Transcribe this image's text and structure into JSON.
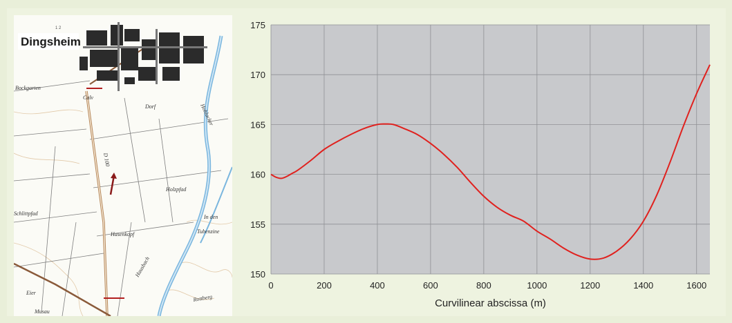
{
  "map": {
    "town_label": "Dingsheim",
    "grid_ref": "1 2",
    "labels": [
      {
        "id": "bockgarten",
        "text": "Bockgarten"
      },
      {
        "id": "cale",
        "text": "Calv"
      },
      {
        "id": "hohlacker",
        "text": "Hohlacker"
      },
      {
        "id": "d100",
        "text": "D 100"
      },
      {
        "id": "holzpfad",
        "text": "Holzpfad"
      },
      {
        "id": "schlittpfad",
        "text": "Schlittpfad"
      },
      {
        "id": "hasenkopf",
        "text": "Hasenkopf"
      },
      {
        "id": "indem",
        "text": "In den"
      },
      {
        "id": "tubenzine",
        "text": "Tubenzine"
      },
      {
        "id": "eier",
        "text": "Eier"
      },
      {
        "id": "musau",
        "text": "Musau"
      },
      {
        "id": "rottberg",
        "text": "Rottberg"
      },
      {
        "id": "dorf",
        "text": "Dorf"
      },
      {
        "id": "bach",
        "text": "Hausbach"
      }
    ]
  },
  "chart_data": {
    "type": "line",
    "title": "",
    "xlabel": "Curvilinear abscissa (m)",
    "ylabel": "",
    "xlim": [
      0,
      1650
    ],
    "ylim": [
      150,
      175
    ],
    "x_ticks": [
      0,
      200,
      400,
      600,
      800,
      1000,
      1200,
      1400,
      1600
    ],
    "y_ticks": [
      150,
      155,
      160,
      165,
      170,
      175
    ],
    "grid": true,
    "colors": {
      "line": "#e0211e",
      "plot_bg": "#c8c9cc",
      "grid": "#8f9094"
    },
    "series": [
      {
        "x": [
          0,
          20,
          40,
          60,
          80,
          100,
          150,
          200,
          250,
          300,
          350,
          400,
          430,
          460,
          500,
          550,
          600,
          650,
          700,
          750,
          800,
          850,
          900,
          950,
          1000,
          1050,
          1100,
          1150,
          1200,
          1250,
          1300,
          1350,
          1400,
          1450,
          1500,
          1550,
          1600,
          1650
        ],
        "y": [
          160.0,
          159.7,
          159.6,
          159.8,
          160.1,
          160.4,
          161.4,
          162.5,
          163.3,
          164.0,
          164.6,
          165.0,
          165.05,
          165.0,
          164.6,
          164.0,
          163.1,
          162.0,
          160.7,
          159.2,
          157.8,
          156.7,
          155.9,
          155.3,
          154.3,
          153.5,
          152.6,
          151.9,
          151.5,
          151.6,
          152.3,
          153.5,
          155.3,
          157.9,
          161.2,
          164.8,
          168.1,
          171.0
        ]
      }
    ]
  }
}
